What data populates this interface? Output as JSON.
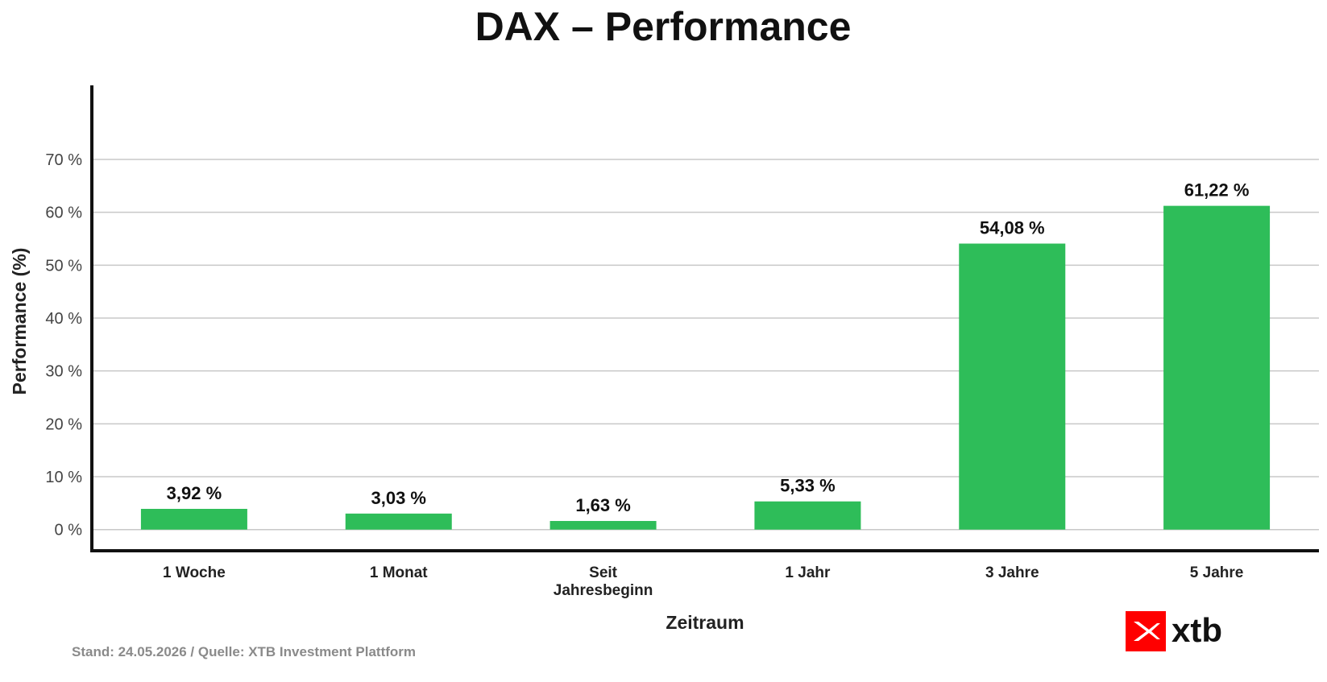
{
  "chart_data": {
    "type": "bar",
    "title": "DAX – Performance",
    "xlabel": "Zeitraum",
    "ylabel": "Performance (%)",
    "categories": [
      [
        "1 Woche"
      ],
      [
        "1 Monat"
      ],
      [
        "Seit",
        "Jahresbeginn"
      ],
      [
        "1 Jahr"
      ],
      [
        "3 Jahre"
      ],
      [
        "5 Jahre"
      ]
    ],
    "values": [
      3.92,
      3.03,
      1.63,
      5.33,
      54.08,
      61.22
    ],
    "value_labels": [
      "3,92 %",
      "3,03 %",
      "1,63 %",
      "5,33 %",
      "54,08 %",
      "61,22 %"
    ],
    "yticks": [
      0,
      10,
      20,
      30,
      40,
      50,
      60,
      70
    ],
    "ytick_labels": [
      "0 %",
      "10 %",
      "20 %",
      "30 %",
      "40 %",
      "50 %",
      "60 %",
      "70 %"
    ],
    "ylim": [
      -4,
      84
    ],
    "grid": true,
    "bar_color": "#2ebd59"
  },
  "footer": {
    "source": "Stand: 24.05.2026 / Quelle: XTB Investment Plattform"
  },
  "logo": {
    "text": "xtb",
    "icon": "xtb-logo-icon",
    "color": "#ff0000"
  }
}
